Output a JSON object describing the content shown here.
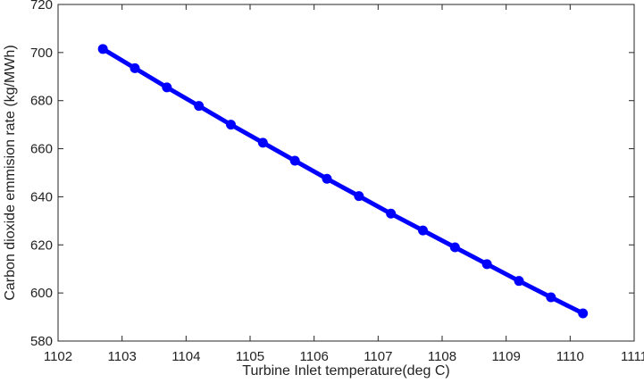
{
  "chart_data": {
    "type": "line",
    "title": "",
    "xlabel": "Turbine Inlet temperature(deg C)",
    "ylabel": "Carbon dioxide emmision rate (kg/MWh)",
    "xlim": [
      1102,
      1111
    ],
    "ylim": [
      580,
      720
    ],
    "xticks": [
      1102,
      1103,
      1104,
      1105,
      1106,
      1107,
      1108,
      1109,
      1110,
      1111
    ],
    "yticks": [
      580,
      600,
      620,
      640,
      660,
      680,
      700,
      720
    ],
    "grid": false,
    "legend": "none",
    "series": [
      {
        "color": "#0000ff",
        "marker": "circle",
        "x": [
          1102.7,
          1103.2,
          1103.7,
          1104.2,
          1104.7,
          1105.2,
          1105.7,
          1106.2,
          1106.7,
          1107.2,
          1107.7,
          1108.2,
          1108.7,
          1109.2,
          1109.7,
          1110.2
        ],
        "y": [
          701.5,
          693.5,
          685.5,
          677.8,
          670.0,
          662.5,
          655.0,
          647.5,
          640.3,
          633.0,
          626.0,
          619.0,
          612.0,
          605.0,
          598.2,
          591.5
        ]
      }
    ]
  }
}
